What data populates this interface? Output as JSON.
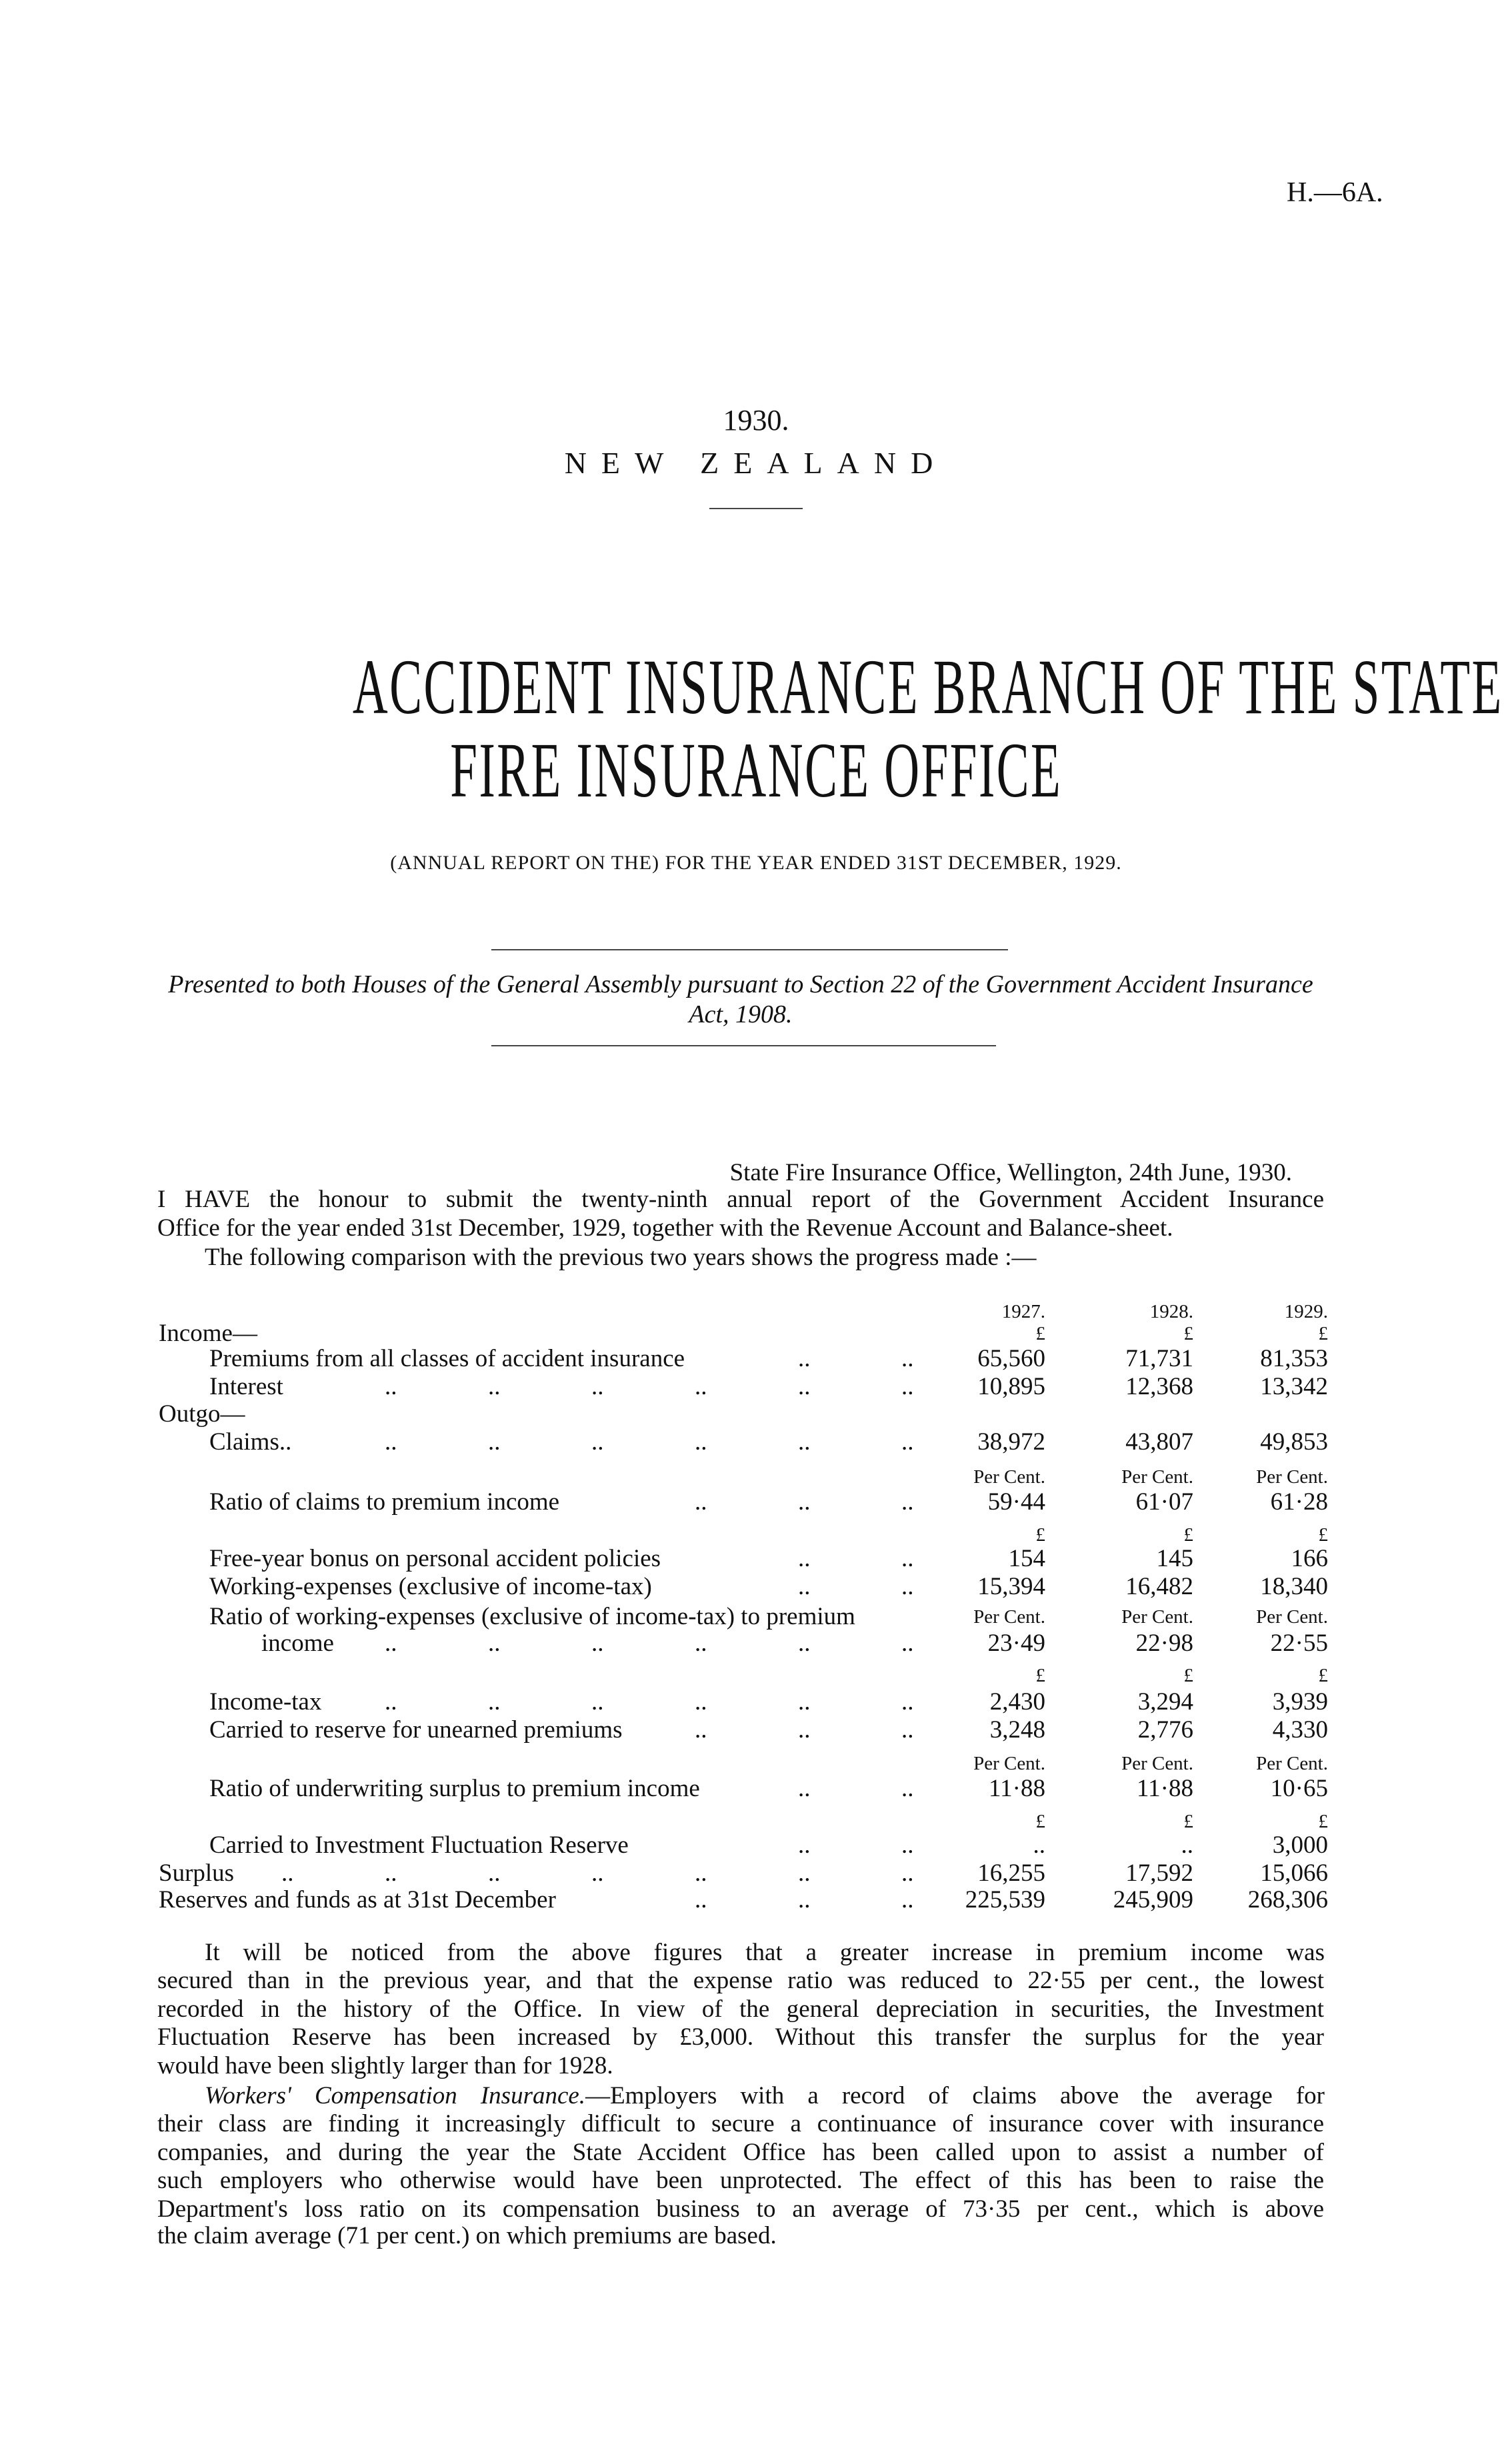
{
  "header": {
    "reference": "H.—6A."
  },
  "cover": {
    "year": "1930.",
    "country": "NEW ZEALAND",
    "title_lines": [
      "ACCIDENT INSURANCE BRANCH OF THE STATE",
      "FIRE INSURANCE OFFICE"
    ],
    "subtitle": "(ANNUAL REPORT ON THE) FOR THE YEAR ENDED 31ST DECEMBER, 1929.",
    "presented": "Presented to both Houses of the General Assembly pursuant to Section 22 of the Government Accident Insurance Act, 1908."
  },
  "letter": {
    "address": "State Fire Insurance Office, Wellington, 24th June, 1930.",
    "lines": [
      "I HAVE the honour to submit the twenty-ninth annual report of the Government Accident Insurance",
      "Office for the year ended 31st December, 1929, together with the Revenue Account and Balance-sheet.",
      "The following comparison with the previous two years shows the progress made :—"
    ]
  },
  "table": {
    "rows": [
      {
        "label": "",
        "level": 0,
        "leaders": "",
        "values": [
          "1927.",
          "1928.",
          "1929."
        ],
        "unit": true
      },
      {
        "label": "Income—",
        "level": 0,
        "leaders": "",
        "values": [
          "£",
          "£",
          "£"
        ],
        "unit": true
      },
      {
        "label": "Premiums from all classes of accident insurance",
        "level": 1,
        "leaders": ".. ..",
        "values": [
          "65,560",
          "71,731",
          "81,353"
        ]
      },
      {
        "label": "Interest",
        "level": 1,
        "leaders": ".. .. .. .. .. ..",
        "values": [
          "10,895",
          "12,368",
          "13,342"
        ]
      },
      {
        "label": "Outgo—",
        "level": 0,
        "leaders": "",
        "values": []
      },
      {
        "label": "Claims..",
        "level": 1,
        "leaders": ".. .. .. .. .. ..",
        "values": [
          "38,972",
          "43,807",
          "49,853"
        ]
      },
      {
        "label": "",
        "level": 1,
        "leaders": "",
        "values": [
          "Per Cent.",
          "Per Cent.",
          "Per Cent."
        ],
        "unit": true
      },
      {
        "label": "Ratio of claims to premium income",
        "level": 1,
        "leaders": ".. .. ..",
        "values": [
          "59·44",
          "61·07",
          "61·28"
        ]
      },
      {
        "label": "",
        "level": 1,
        "leaders": "",
        "values": [
          "£",
          "£",
          "£"
        ],
        "unit": true
      },
      {
        "label": "Free-year bonus on personal accident policies",
        "level": 1,
        "leaders": ".. ..",
        "values": [
          "154",
          "145",
          "166"
        ]
      },
      {
        "label": "Working-expenses (exclusive of income-tax)",
        "level": 1,
        "leaders": ".. ..",
        "values": [
          "15,394",
          "16,482",
          "18,340"
        ]
      },
      {
        "label": "Ratio of working-expenses (exclusive of income-tax) to premium",
        "level": 1,
        "leaders": "",
        "values": [
          "Per Cent.",
          "Per Cent.",
          "Per Cent."
        ],
        "unit": true
      },
      {
        "label": "income",
        "level": 2,
        "leaders": ".. .. .. .. .. ..",
        "values": [
          "23·49",
          "22·98",
          "22·55"
        ]
      },
      {
        "label": "",
        "level": 1,
        "leaders": "",
        "values": [
          "£",
          "£",
          "£"
        ],
        "unit": true
      },
      {
        "label": "Income-tax",
        "level": 1,
        "leaders": ".. .. .. .. .. ..",
        "values": [
          "2,430",
          "3,294",
          "3,939"
        ]
      },
      {
        "label": "Carried to reserve for unearned premiums",
        "level": 1,
        "leaders": ".. .. ..",
        "values": [
          "3,248",
          "2,776",
          "4,330"
        ]
      },
      {
        "label": "",
        "level": 1,
        "leaders": "",
        "values": [
          "Per Cent.",
          "Per Cent.",
          "Per Cent."
        ],
        "unit": true
      },
      {
        "label": "Ratio of underwriting surplus to premium income",
        "level": 1,
        "leaders": ".. ..",
        "values": [
          "11·88",
          "11·88",
          "10·65"
        ]
      },
      {
        "label": "",
        "level": 1,
        "leaders": "",
        "values": [
          "£",
          "£",
          "£"
        ],
        "unit": true
      },
      {
        "label": "Carried to Investment Fluctuation Reserve",
        "level": 1,
        "leaders": ".. ..",
        "values": [
          "..",
          "..",
          "3,000"
        ]
      },
      {
        "label": "Surplus",
        "level": 0,
        "leaders": ".. .. .. .. .. .. ..",
        "values": [
          "16,255",
          "17,592",
          "15,066"
        ]
      },
      {
        "label": "Reserves and funds as at 31st December",
        "level": 0,
        "leaders": ".. .. ..",
        "values": [
          "225,539",
          "245,909",
          "268,306"
        ]
      }
    ]
  },
  "body": {
    "lines": [
      {
        "text": "It will be noticed from the above figures that a greater increase in premium income was",
        "indent": true
      },
      {
        "text": "secured than in the previous year, and that the expense ratio was reduced to 22·55 per cent., the lowest"
      },
      {
        "text": "recorded in the history of the Office. In view of the general depreciation in securities, the Investment"
      },
      {
        "text": "Fluctuation Reserve has been increased by £3,000. Without this transfer the surplus for the year"
      },
      {
        "text": "would have been slightly larger than for 1928.",
        "last": true
      },
      {
        "italic": "Workers' Compensation Insurance.",
        "text": "—Employers with a record of claims above the average for",
        "indent": true
      },
      {
        "text": "their class are finding it increasingly difficult to secure a continuance of insurance cover with insurance"
      },
      {
        "text": "companies, and during the year the State Accident Office has been called upon to assist a number of"
      },
      {
        "text": "such employers who otherwise would have been unprotected. The effect of this has been to raise the"
      },
      {
        "text": "Department's loss ratio on its compensation business to an average of 73·35 per cent., which is above"
      },
      {
        "text": "the claim average (71 per cent.) on which premiums are based.",
        "last": true
      }
    ]
  }
}
